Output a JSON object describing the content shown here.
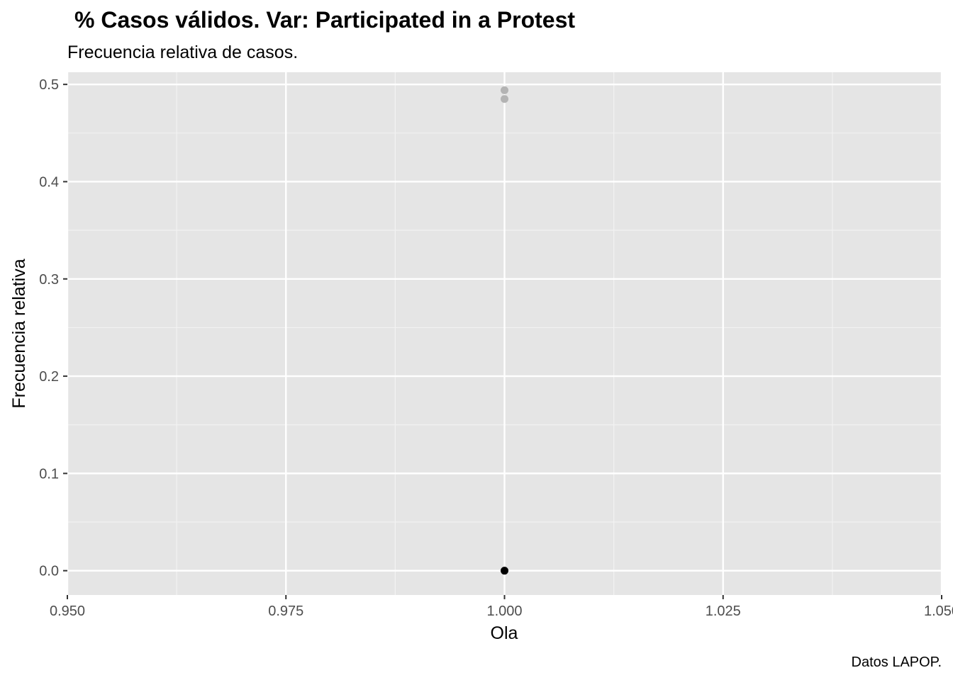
{
  "chart_data": {
    "type": "scatter",
    "title": "% Casos válidos. Var: Participated in a Protest",
    "subtitle": "Frecuencia relativa de casos.",
    "xlabel": "Ola",
    "ylabel": "Frecuencia relativa",
    "caption": "Datos LAPOP.",
    "xlim": [
      0.95,
      1.05
    ],
    "ylim": [
      -0.025,
      0.5125
    ],
    "x_ticks": [
      {
        "value": 0.95,
        "label": "0.950"
      },
      {
        "value": 0.975,
        "label": "0.975"
      },
      {
        "value": 1.0,
        "label": "1.000"
      },
      {
        "value": 1.025,
        "label": "1.025"
      },
      {
        "value": 1.05,
        "label": "1.050"
      }
    ],
    "y_ticks": [
      {
        "value": 0.0,
        "label": "0.0"
      },
      {
        "value": 0.1,
        "label": "0.1"
      },
      {
        "value": 0.2,
        "label": "0.2"
      },
      {
        "value": 0.3,
        "label": "0.3"
      },
      {
        "value": 0.4,
        "label": "0.4"
      },
      {
        "value": 0.5,
        "label": "0.5"
      }
    ],
    "grid": true,
    "legend": "none",
    "series": [
      {
        "color": "#b3b3b3",
        "points": [
          {
            "x": 1.0,
            "y": 0.494
          },
          {
            "x": 1.0,
            "y": 0.485
          }
        ]
      },
      {
        "color": "#000000",
        "points": [
          {
            "x": 1.0,
            "y": 0.0
          }
        ]
      }
    ],
    "colors": {
      "panel_background": "#e5e5e5",
      "grid_major": "#ffffff",
      "grid_minor": "#f2f2f2",
      "tick": "#333333"
    }
  }
}
